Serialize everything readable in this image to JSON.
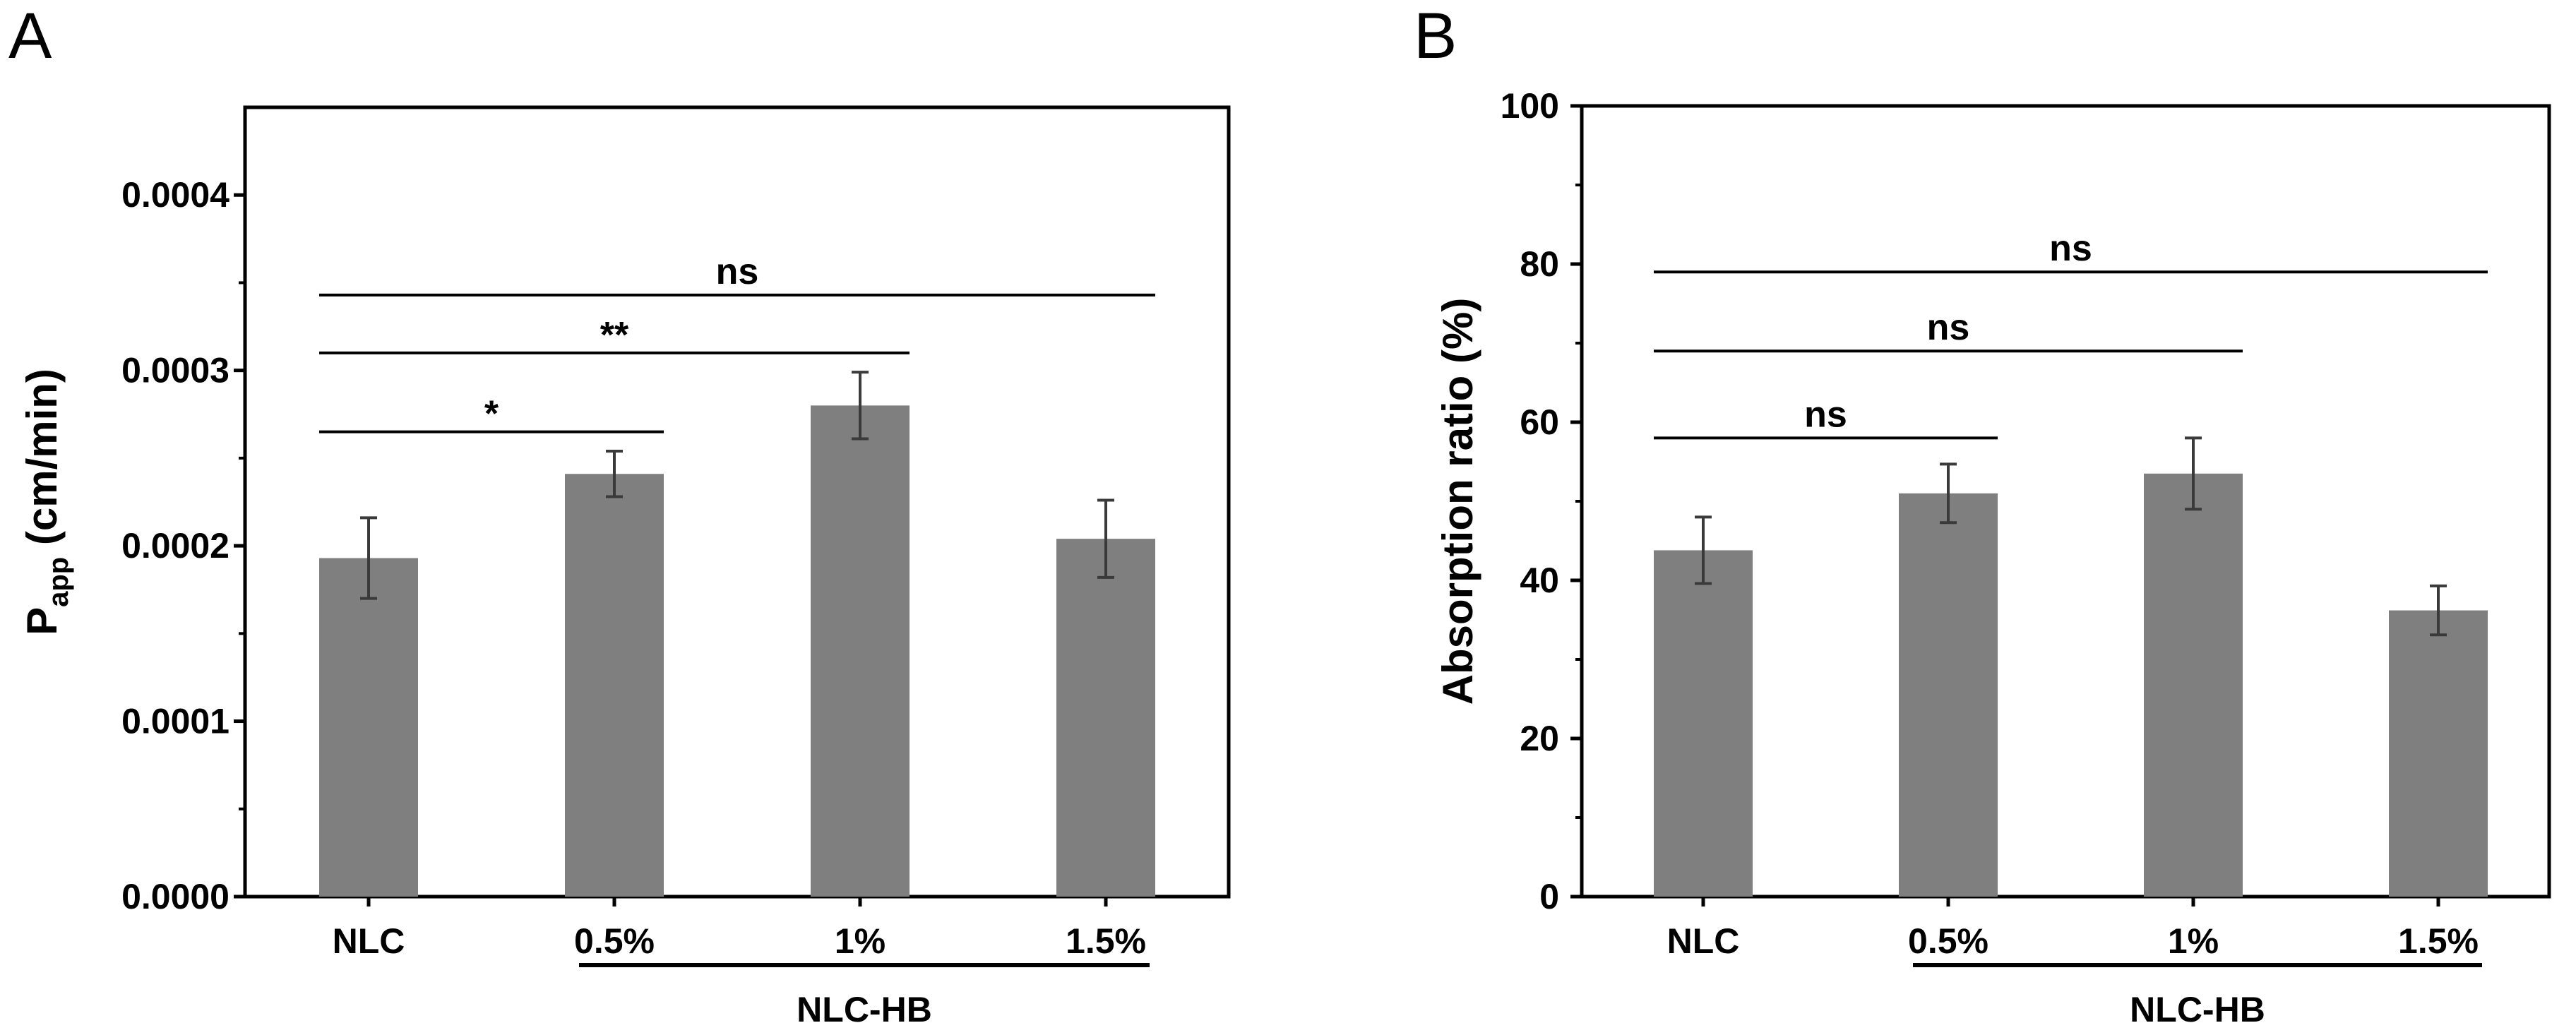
{
  "chart_data": [
    {
      "panel": "A",
      "type": "bar",
      "categories": [
        "NLC",
        "0.5%",
        "1%",
        "1.5%"
      ],
      "group_label": "NLC-HB",
      "group_span": [
        "0.5%",
        "1.5%"
      ],
      "ylabel_main": "P",
      "ylabel_sub": "app",
      "ylabel_unit": " (cm/min)",
      "ylim": [
        0,
        0.00045
      ],
      "yticks": [
        "0.0000",
        "0.0001",
        "0.0002",
        "0.0003",
        "0.0004"
      ],
      "ytick_values": [
        0,
        0.0001,
        0.0002,
        0.0003,
        0.0004
      ],
      "values": [
        0.000193,
        0.000241,
        0.00028,
        0.000204
      ],
      "errors": [
        2.3e-05,
        1.3e-05,
        1.9e-05,
        2.2e-05
      ],
      "bar_color": "#7f7f7f",
      "significance": [
        {
          "from": 0,
          "to": 1,
          "y": 0.000265,
          "label": "*"
        },
        {
          "from": 0,
          "to": 2,
          "y": 0.00031,
          "label": "**"
        },
        {
          "from": 0,
          "to": 3,
          "y": 0.000343,
          "label": "ns"
        }
      ]
    },
    {
      "panel": "B",
      "type": "bar",
      "categories": [
        "NLC",
        "0.5%",
        "1%",
        "1.5%"
      ],
      "group_label": "NLC-HB",
      "group_span": [
        "0.5%",
        "1.5%"
      ],
      "ylabel": "Absorption ratio (%)",
      "ylim": [
        0,
        100
      ],
      "yticks": [
        "0",
        "20",
        "40",
        "60",
        "80",
        "100"
      ],
      "ytick_values": [
        0,
        20,
        40,
        60,
        80,
        100
      ],
      "values": [
        43.8,
        51.0,
        53.5,
        36.2
      ],
      "errors": [
        4.2,
        3.7,
        4.5,
        3.1
      ],
      "bar_color": "#7f7f7f",
      "significance": [
        {
          "from": 0,
          "to": 1,
          "y": 58,
          "label": "ns"
        },
        {
          "from": 0,
          "to": 2,
          "y": 69,
          "label": "ns"
        },
        {
          "from": 0,
          "to": 3,
          "y": 79,
          "label": "ns"
        }
      ]
    }
  ]
}
